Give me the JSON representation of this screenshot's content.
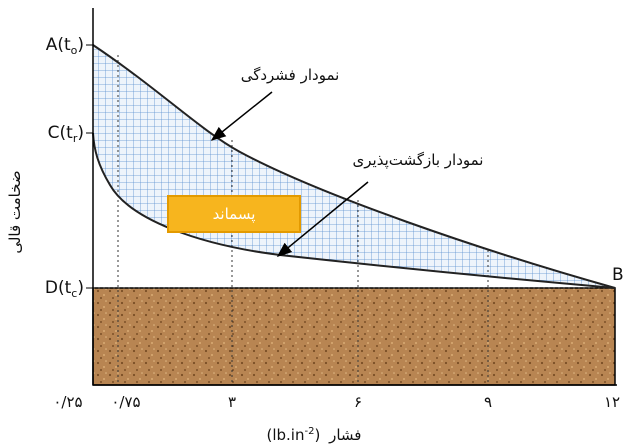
{
  "diagram": {
    "y_axis_title": "ضخامت قالی",
    "y_labels": [
      {
        "main": "A(t",
        "sub": "o",
        "close": ")"
      },
      {
        "main": "C(t",
        "sub": "r",
        "close": ")"
      },
      {
        "main": "D(t",
        "sub": "c",
        "close": ")"
      }
    ],
    "point_b": "B",
    "x_ticks": [
      "۰/۲۵",
      "۰/۷۵",
      "۳",
      "۶",
      "۹",
      "۱۲"
    ],
    "x_axis_title": {
      "word": "فشار",
      "unit": "(lb.in",
      "sup": "-2",
      "close": ")"
    },
    "compression_label": "نمودار فشردگی",
    "rebound_label": "نمودار بازگشت‌پذیری",
    "residual_label": "پسماند"
  }
}
